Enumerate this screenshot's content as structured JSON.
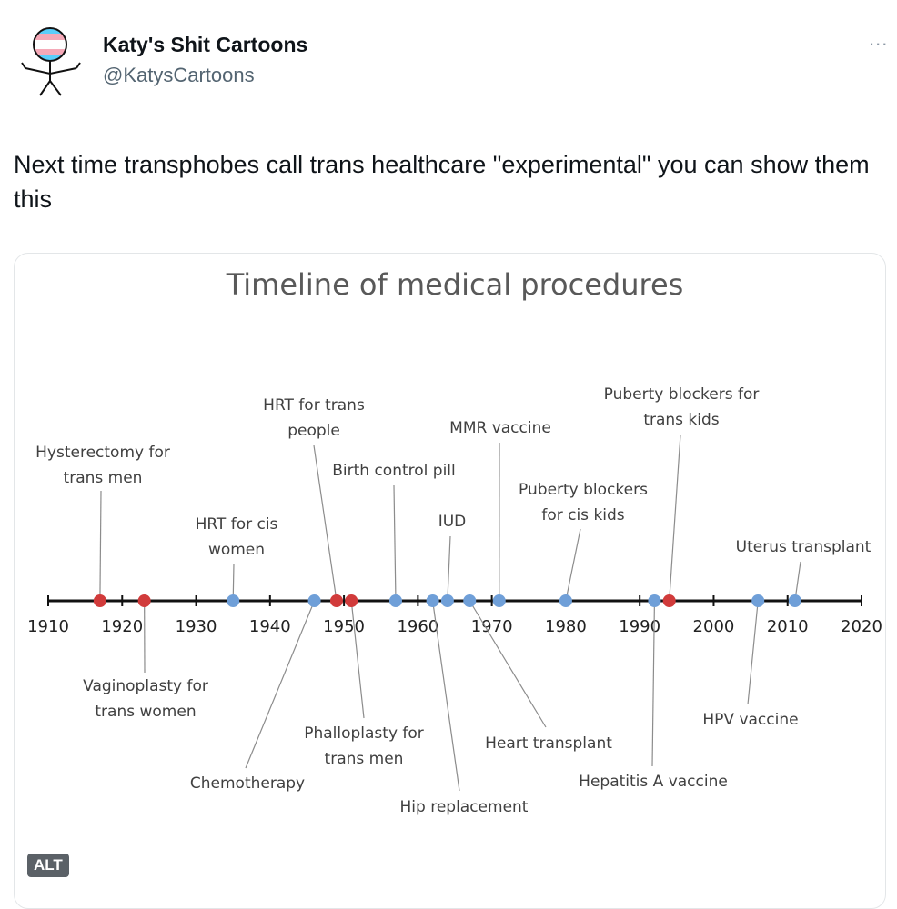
{
  "tweet": {
    "name": "Katy's Shit Cartoons",
    "handle": "@KatysCartoons",
    "more": "...",
    "text": "Next time transphobes call trans healthcare \"experimental\" you can show them this",
    "alt_badge": "ALT"
  },
  "chart_data": {
    "type": "timeline",
    "title": "Timeline of medical procedures",
    "xlim": [
      1910,
      2020
    ],
    "xticks": [
      1910,
      1920,
      1930,
      1940,
      1950,
      1960,
      1970,
      1980,
      1990,
      2000,
      2010,
      2020
    ],
    "events": [
      {
        "label": [
          "Hysterectomy for",
          "trans men"
        ],
        "year": 1917,
        "color": "#d13b3b"
      },
      {
        "label": [
          "Vaginoplasty for",
          "trans women"
        ],
        "year": 1923,
        "color": "#d13b3b"
      },
      {
        "label": [
          "HRT for cis",
          "women"
        ],
        "year": 1935,
        "color": "#6f9fd8"
      },
      {
        "label": [
          "Chemotherapy"
        ],
        "year": 1946,
        "color": "#6f9fd8"
      },
      {
        "label": [
          "HRT for trans",
          "people"
        ],
        "year": 1949,
        "color": "#d13b3b"
      },
      {
        "label": [
          "Phalloplasty for",
          "trans men"
        ],
        "year": 1951,
        "color": "#d13b3b"
      },
      {
        "label": [
          "Birth control pill"
        ],
        "year": 1957,
        "color": "#6f9fd8"
      },
      {
        "label": [
          "Hip replacement"
        ],
        "year": 1962,
        "color": "#6f9fd8"
      },
      {
        "label": [
          "IUD"
        ],
        "year": 1964,
        "color": "#6f9fd8"
      },
      {
        "label": [
          "Heart transplant"
        ],
        "year": 1967,
        "color": "#6f9fd8"
      },
      {
        "label": [
          "MMR vaccine"
        ],
        "year": 1971,
        "color": "#6f9fd8"
      },
      {
        "label": [
          "Puberty blockers",
          "for cis kids"
        ],
        "year": 1980,
        "color": "#6f9fd8"
      },
      {
        "label": [
          "Hepatitis A vaccine"
        ],
        "year": 1992,
        "color": "#6f9fd8"
      },
      {
        "label": [
          "Puberty blockers for",
          "trans kids"
        ],
        "year": 1994,
        "color": "#d13b3b"
      },
      {
        "label": [
          "HPV vaccine"
        ],
        "year": 2006,
        "color": "#6f9fd8"
      },
      {
        "label": [
          "Uterus transplant"
        ],
        "year": 2011,
        "color": "#6f9fd8"
      }
    ]
  }
}
